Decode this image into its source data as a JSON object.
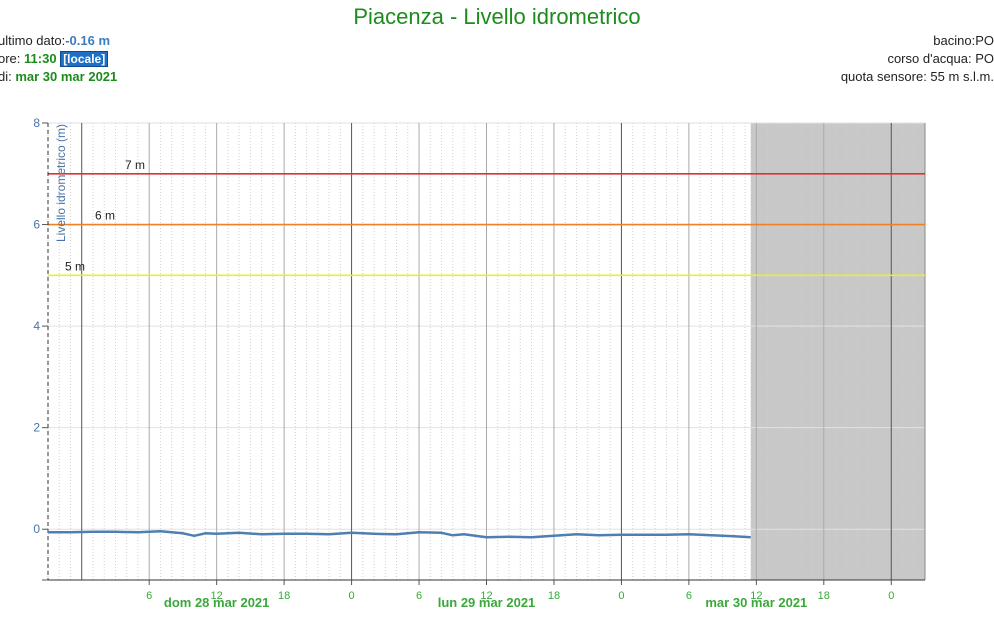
{
  "header": {
    "title": "Piacenza - Livello idrometrico"
  },
  "info_left": {
    "last_label": "ultimo dato:",
    "last_value": "-0.16 m",
    "time_label": "ore: ",
    "time_value": "11:30",
    "time_badge": "[locale]",
    "date_label": "di: ",
    "date_value": "mar 30 mar 2021"
  },
  "info_right": {
    "basin": "bacino:PO",
    "river": "corso d'acqua: PO",
    "sensor": "quota sensore: 55 m s.l.m."
  },
  "colors": {
    "series": "#4e7fb0",
    "threshold_7": "#e03030",
    "threshold_6": "#f08020",
    "threshold_5": "#f0ea30",
    "forecast_shade": "#c8c8c8",
    "axis_text": "#4a74a8",
    "date_text": "#3aa83a"
  },
  "chart_data": {
    "type": "line",
    "ylabel": "Livello idrometrico (m)",
    "ylim": [
      -1,
      8
    ],
    "yticks": [
      0,
      2,
      4,
      6,
      8
    ],
    "x_range_hours": [
      -3,
      75
    ],
    "x_tick_labels": [
      {
        "h": 6,
        "label": "6"
      },
      {
        "h": 12,
        "label": "12"
      },
      {
        "h": 18,
        "label": "18"
      },
      {
        "h": 24,
        "label": "0"
      },
      {
        "h": 30,
        "label": "6"
      },
      {
        "h": 36,
        "label": "12"
      },
      {
        "h": 42,
        "label": "18"
      },
      {
        "h": 48,
        "label": "0"
      },
      {
        "h": 54,
        "label": "6"
      },
      {
        "h": 60,
        "label": "12"
      },
      {
        "h": 66,
        "label": "18"
      },
      {
        "h": 72,
        "label": "0"
      }
    ],
    "date_labels": [
      {
        "h": 12,
        "label": "dom 28 mar 2021"
      },
      {
        "h": 36,
        "label": "lun 29 mar 2021"
      },
      {
        "h": 60,
        "label": "mar 30 mar 2021"
      }
    ],
    "thresholds": [
      {
        "value": 7,
        "label": "7 m",
        "color": "#e03030"
      },
      {
        "value": 6,
        "label": "6 m",
        "color": "#f08020"
      },
      {
        "value": 5,
        "label": "5 m",
        "color": "#f0ea30"
      }
    ],
    "forecast_start_h": 59.5,
    "series": [
      {
        "x": [
          -3,
          -1,
          1,
          3,
          5,
          7,
          9,
          10,
          11,
          12,
          14,
          16,
          18,
          20,
          22,
          24,
          26,
          28,
          30,
          32,
          33,
          34,
          36,
          38,
          40,
          42,
          44,
          46,
          48,
          50,
          52,
          54,
          56,
          58,
          59.5
        ],
        "y": [
          -0.06,
          -0.06,
          -0.05,
          -0.05,
          -0.06,
          -0.04,
          -0.08,
          -0.13,
          -0.08,
          -0.09,
          -0.07,
          -0.1,
          -0.09,
          -0.09,
          -0.1,
          -0.07,
          -0.09,
          -0.1,
          -0.06,
          -0.07,
          -0.12,
          -0.1,
          -0.16,
          -0.15,
          -0.16,
          -0.13,
          -0.1,
          -0.12,
          -0.11,
          -0.11,
          -0.11,
          -0.1,
          -0.12,
          -0.14,
          -0.16
        ]
      }
    ]
  }
}
